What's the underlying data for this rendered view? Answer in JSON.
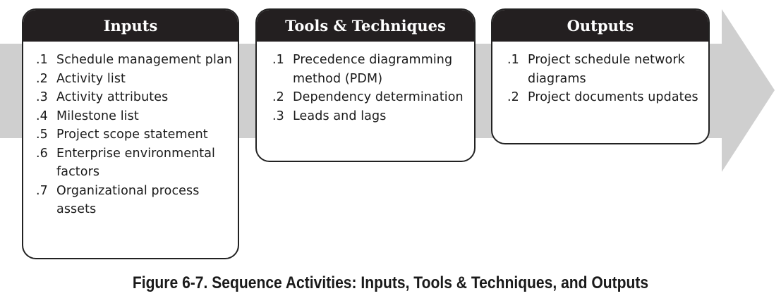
{
  "colors": {
    "arrow": "#cfcfcf",
    "header_bg": "#231f20",
    "header_text": "#ffffff",
    "border": "#222222"
  },
  "boxes": {
    "inputs": {
      "title": "Inputs",
      "items": [
        {
          "num": ".1",
          "text": "Schedule management plan"
        },
        {
          "num": ".2",
          "text": "Activity list"
        },
        {
          "num": ".3",
          "text": "Activity attributes"
        },
        {
          "num": ".4",
          "text": "Milestone list"
        },
        {
          "num": ".5",
          "text": "Project scope statement"
        },
        {
          "num": ".6",
          "text": "Enterprise environmental factors"
        },
        {
          "num": ".7",
          "text": "Organizational process assets"
        }
      ]
    },
    "tools": {
      "title": "Tools & Techniques",
      "items": [
        {
          "num": ".1",
          "text": "Precedence diagramming method (PDM)"
        },
        {
          "num": ".2",
          "text": "Dependency determination"
        },
        {
          "num": ".3",
          "text": "Leads and lags"
        }
      ]
    },
    "outputs": {
      "title": "Outputs",
      "items": [
        {
          "num": ".1",
          "text": "Project schedule network diagrams"
        },
        {
          "num": ".2",
          "text": "Project documents updates"
        }
      ]
    }
  },
  "caption": "Figure 6-7. Sequence Activities: Inputs, Tools & Techniques, and Outputs"
}
